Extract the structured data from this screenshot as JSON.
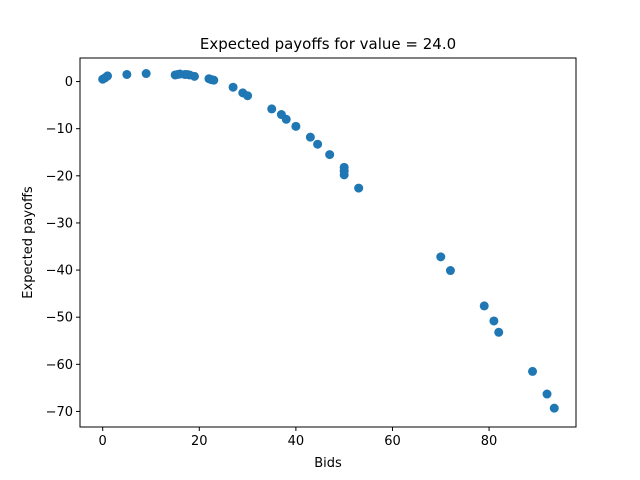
{
  "chart_data": {
    "type": "scatter",
    "title": "Expected payoffs for value = 24.0",
    "xlabel": "Bids",
    "ylabel": "Expected payoffs",
    "xlim": [
      -4.7,
      98.0
    ],
    "ylim": [
      -73.3,
      5.0
    ],
    "xticks": [
      0,
      20,
      40,
      60,
      80
    ],
    "yticks": [
      0,
      -10,
      -20,
      -30,
      -40,
      -50,
      -60,
      -70
    ],
    "grid": false,
    "legend": "none",
    "color": "#1f77b4",
    "series": [
      {
        "x": [
          0,
          0.5,
          1,
          5,
          9,
          15,
          15.5,
          16,
          17,
          17.5,
          18,
          19,
          22,
          22.5,
          23,
          27,
          29,
          30,
          35,
          37,
          38,
          40,
          43,
          44.5,
          47,
          50,
          50,
          50,
          53,
          70,
          72,
          79,
          81,
          82,
          89,
          92,
          93.5
        ],
        "y": [
          0.5,
          0.8,
          1.2,
          1.5,
          1.7,
          1.4,
          1.5,
          1.6,
          1.5,
          1.5,
          1.4,
          1.1,
          0.6,
          0.4,
          0.3,
          -1.2,
          -2.4,
          -3.0,
          -5.8,
          -7.0,
          -8.0,
          -9.5,
          -11.8,
          -13.3,
          -15.5,
          -18.2,
          -19.0,
          -19.8,
          -22.6,
          -37.2,
          -40.1,
          -47.6,
          -50.8,
          -53.2,
          -61.5,
          -66.3,
          -69.3
        ]
      }
    ]
  }
}
